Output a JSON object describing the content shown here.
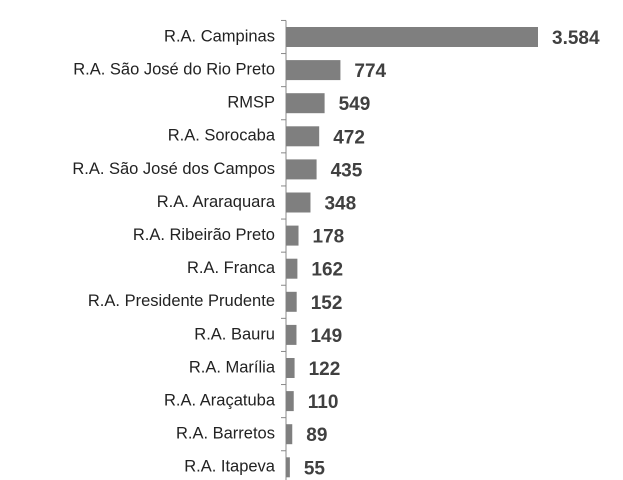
{
  "chart_data": {
    "type": "barh",
    "categories": [
      "R.A. Campinas",
      "R.A. São José do Rio Preto",
      "RMSP",
      "R.A. Sorocaba",
      "R.A. São José dos Campos",
      "R.A. Araraquara",
      "R.A. Ribeirão Preto",
      "R.A. Franca",
      "R.A. Presidente Prudente",
      "R.A. Bauru",
      "R.A. Marília",
      "R.A. Araçatuba",
      "R.A. Barretos",
      "R.A. Itapeva"
    ],
    "values": [
      3584,
      774,
      549,
      472,
      435,
      348,
      178,
      162,
      152,
      149,
      122,
      110,
      89,
      55
    ],
    "value_labels": [
      "3.584",
      "774",
      "549",
      "472",
      "435",
      "348",
      "178",
      "162",
      "152",
      "149",
      "122",
      "110",
      "89",
      "55"
    ],
    "color": "#7f7f7f"
  }
}
